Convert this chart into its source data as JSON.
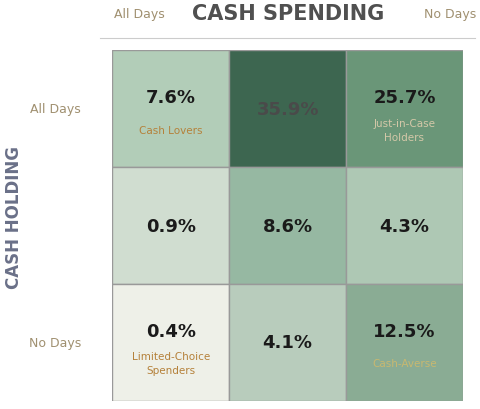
{
  "title": "CASH SPENDING",
  "xlabel_left": "All Days",
  "xlabel_right": "No Days",
  "ylabel_top": "All Days",
  "ylabel_bottom": "No Days",
  "ylabel_main": "CASH HOLDING",
  "cells": [
    [
      {
        "pct": "7.6%",
        "label": "Cash Lovers",
        "bg": "#b2cdb8",
        "pct_color": "#1a1a1a",
        "label_color": "#b5813a"
      },
      {
        "pct": "35.9%",
        "label": "",
        "bg": "#3d6650",
        "pct_color": "#4a4a4a",
        "label_color": "#1a1a1a"
      },
      {
        "pct": "25.7%",
        "label": "Just-in-Case\nHolders",
        "bg": "#6a9678",
        "pct_color": "#1a1a1a",
        "label_color": "#d4c8a8"
      }
    ],
    [
      {
        "pct": "0.9%",
        "label": "",
        "bg": "#d0ddd0",
        "pct_color": "#1a1a1a",
        "label_color": "#1a1a1a"
      },
      {
        "pct": "8.6%",
        "label": "",
        "bg": "#96b8a2",
        "pct_color": "#1a1a1a",
        "label_color": "#1a1a1a"
      },
      {
        "pct": "4.3%",
        "label": "",
        "bg": "#aec8b4",
        "pct_color": "#1a1a1a",
        "label_color": "#1a1a1a"
      }
    ],
    [
      {
        "pct": "0.4%",
        "label": "Limited-Choice\nSpenders",
        "bg": "#eef0e8",
        "pct_color": "#1a1a1a",
        "label_color": "#b5813a"
      },
      {
        "pct": "4.1%",
        "label": "",
        "bg": "#b8ccbc",
        "pct_color": "#1a1a1a",
        "label_color": "#1a1a1a"
      },
      {
        "pct": "12.5%",
        "label": "Cash-Averse",
        "bg": "#8aac94",
        "pct_color": "#1a1a1a",
        "label_color": "#c8b870"
      }
    ]
  ],
  "background_color": "#ffffff",
  "grid_color": "#999999",
  "title_color": "#505050",
  "axis_label_color": "#a09070",
  "ylabel_main_color": "#6a7088"
}
